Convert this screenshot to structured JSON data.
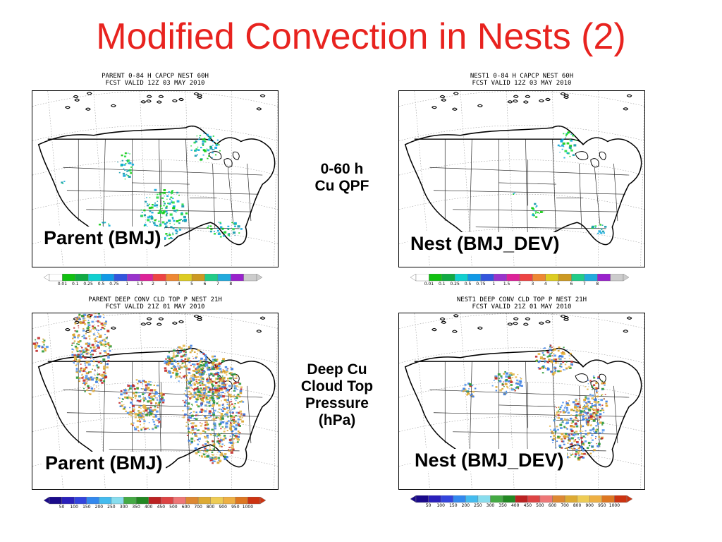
{
  "slide": {
    "title": "Modified Convection in Nests (2)"
  },
  "side_labels": {
    "qpf": [
      "0-60 h",
      "Cu QPF"
    ],
    "cloud_top": [
      "Deep Cu",
      "Cloud Top",
      "Pressure",
      "(hPa)"
    ]
  },
  "panels": [
    {
      "id": "parent-qpf",
      "header_line1": "PARENT 0-84 H CAPCP NEST 60H",
      "header_line2": "FCST VALID 12Z 03 MAY 2010",
      "label": "Parent  (BMJ)",
      "field": "qpf",
      "intensity": "high"
    },
    {
      "id": "nest-qpf",
      "header_line1": "NEST1 0-84 H CAPCP NEST 60H",
      "header_line2": "FCST VALID 12Z 03 MAY 2010",
      "label": "Nest (BMJ_DEV)",
      "field": "qpf",
      "intensity": "low"
    },
    {
      "id": "parent-cloudtop",
      "header_line1": "PARENT DEEP CONV CLD TOP P NEST 21H",
      "header_line2": "FCST VALID 21Z 01 MAY 2010",
      "label": "Parent (BMJ)",
      "field": "cloudtop",
      "intensity": "high"
    },
    {
      "id": "nest-cloudtop",
      "header_line1": "NEST1 DEEP CONV CLD TOP P NEST 21H",
      "header_line2": "FCST VALID 21Z 01 MAY 2010",
      "label": "Nest (BMJ_DEV)",
      "field": "cloudtop",
      "intensity": "low"
    }
  ],
  "colorbars": {
    "qpf": {
      "labels": [
        "0.01",
        "0.1",
        "0.25",
        "0.5",
        "0.75",
        "1",
        "1.5",
        "2",
        "3",
        "4",
        "5",
        "6",
        "7",
        "8"
      ],
      "colors": [
        "#ffffff",
        "#11c111",
        "#11aa44",
        "#11d0d0",
        "#1199e6",
        "#3355dd",
        "#9933cc",
        "#dd2299",
        "#ee4444",
        "#ee8833",
        "#ddcc22",
        "#cc9922",
        "#22cc88",
        "#22aadd",
        "#9922cc",
        "#cccccc"
      ]
    },
    "cloudtop": {
      "labels": [
        "50",
        "100",
        "150",
        "200",
        "250",
        "300",
        "350",
        "400",
        "450",
        "500",
        "600",
        "700",
        "800",
        "900",
        "950",
        "1000"
      ],
      "colors": [
        "#1a0a8a",
        "#2a20bb",
        "#3344dd",
        "#3388ee",
        "#44bbee",
        "#88ddee",
        "#44aa44",
        "#228822",
        "#bb2222",
        "#dd4444",
        "#ee7777",
        "#dd8833",
        "#ddaa33",
        "#eecc55",
        "#eeb044",
        "#dd7722",
        "#cc3311"
      ]
    }
  },
  "field_colors": {
    "qpf": [
      "#11cc11",
      "#22dd44",
      "#11aadd",
      "#1199aa"
    ],
    "cloudtop": [
      "#d9a22a",
      "#e6b84a",
      "#3a7be0",
      "#5599ee",
      "#c22a2a",
      "#2d9a3a"
    ]
  }
}
